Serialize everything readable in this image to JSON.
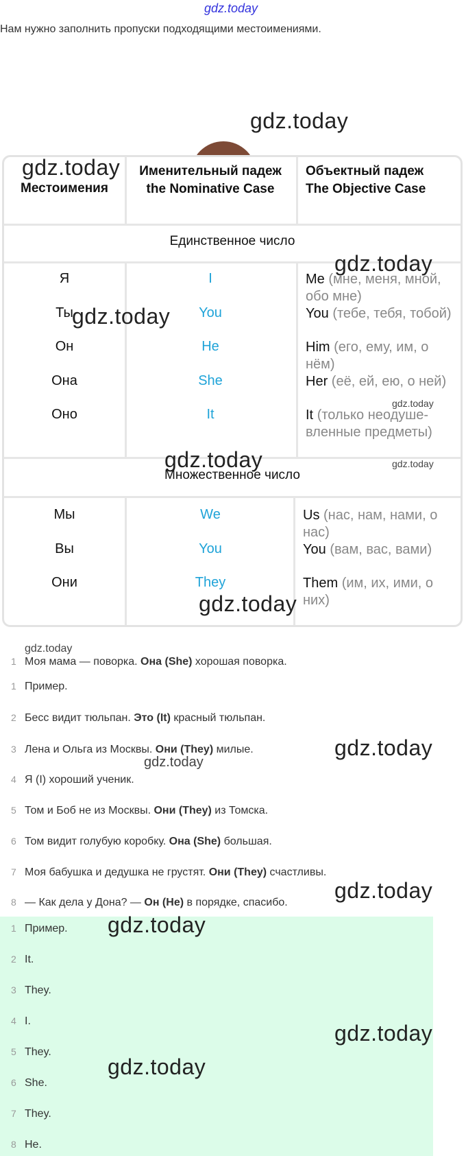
{
  "watermark": "gdz.today",
  "intro": "Нам нужно заполнить пропуски подходящими местоимениями.",
  "table": {
    "headers": [
      [
        "Местоимения"
      ],
      [
        "Именительный падеж",
        "the Nominative Case"
      ],
      [
        "Объектный падеж",
        "The Objective Case"
      ]
    ],
    "singular_label": "Единственное число",
    "plural_label": "Множественное число",
    "singular": [
      {
        "ru": "Я",
        "nom": "I",
        "obj": "Me",
        "obj_note": "(мне, меня, мной, обо мне)"
      },
      {
        "ru": "Ты",
        "nom": "You",
        "obj": "You",
        "obj_note": "(тебе, тебя, тобой)"
      },
      {
        "ru": "Он",
        "nom": "He",
        "obj": "Him",
        "obj_note": "(его, ему, им, о нём)"
      },
      {
        "ru": "Она",
        "nom": "She",
        "obj": "Her",
        "obj_note": "(её, ей, ею, о ней)"
      },
      {
        "ru": "Оно",
        "nom": "It",
        "obj": "It",
        "obj_note": "(только неодуше-вленные предметы)"
      }
    ],
    "plural": [
      {
        "ru": "Мы",
        "nom": "We",
        "obj": "Us",
        "obj_note": "(нас, нам, нами, о нас)"
      },
      {
        "ru": "Вы",
        "nom": "You",
        "obj": "You",
        "obj_note": "(вам, вас, вами)"
      },
      {
        "ru": "Они",
        "nom": "They",
        "obj": "Them",
        "obj_note": "(им, их, ими, о них)"
      }
    ],
    "colors": {
      "nominative": "#1fa3d8",
      "note": "#888888"
    }
  },
  "exercise": [
    {
      "n": "1",
      "pre": "Моя мама — поворка. ",
      "bold": "Она (She)",
      "post": " хорошая поворка."
    },
    {
      "n": "1",
      "pre": "Пример.",
      "bold": "",
      "post": ""
    },
    {
      "n": "2",
      "pre": "Бесс видит тюльпан. ",
      "bold": "Это (It)",
      "post": " красный тюльпан."
    },
    {
      "n": "3",
      "pre": "Лена и Ольга из Москвы. ",
      "bold": "Они (They)",
      "post": " милые."
    },
    {
      "n": "4",
      "pre": "Я (I) хороший ученик.",
      "bold": "",
      "post": ""
    },
    {
      "n": "5",
      "pre": "Том и Боб не из Москвы. ",
      "bold": "Они (They)",
      "post": " из Томска."
    },
    {
      "n": "6",
      "pre": "Том видит голубую коробку. ",
      "bold": "Она (She)",
      "post": " большая."
    },
    {
      "n": "7",
      "pre": "Моя бабушка и дедушка не грустят. ",
      "bold": "Они (They)",
      "post": " счастливы."
    },
    {
      "n": "8",
      "pre": "— Как дела у Дона? — ",
      "bold": "Он (He)",
      "post": " в порядке, спасибо."
    }
  ],
  "answers": [
    {
      "n": "1",
      "text": "Пример."
    },
    {
      "n": "2",
      "text": "It."
    },
    {
      "n": "3",
      "text": "They."
    },
    {
      "n": "4",
      "text": "I."
    },
    {
      "n": "5",
      "text": "They."
    },
    {
      "n": "6",
      "text": "She."
    },
    {
      "n": "7",
      "text": "They."
    },
    {
      "n": "8",
      "text": "He."
    }
  ],
  "answer_bg": "#dcfce9"
}
